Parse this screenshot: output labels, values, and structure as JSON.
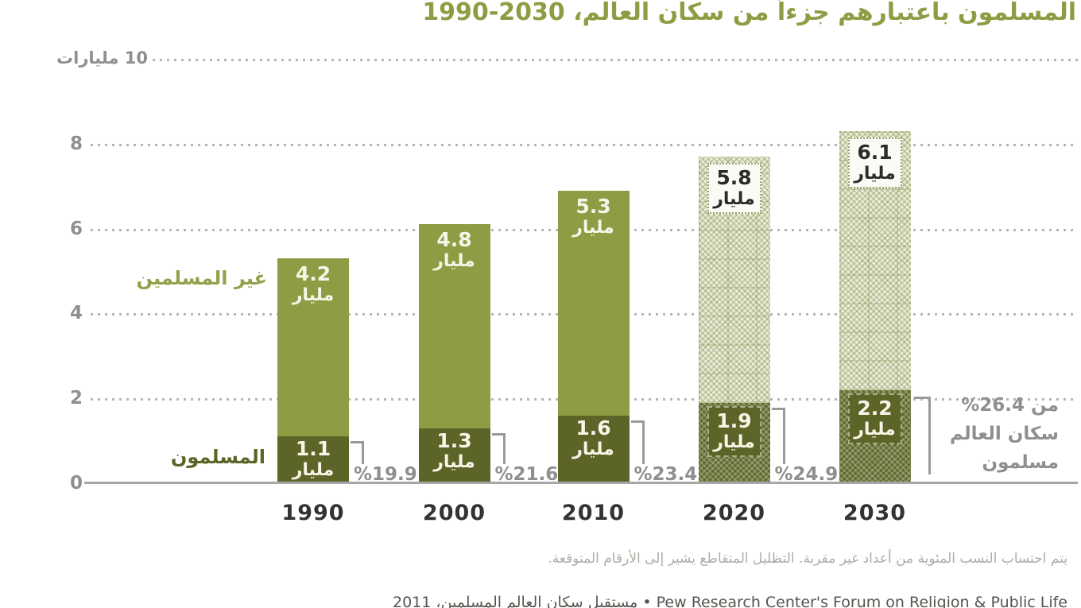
{
  "title": "المسلمون باعتبارهم جزءاً من سكان العالم، 2030-1990",
  "y_axis": {
    "top_label": "10 مليارات",
    "ticks": [
      "8",
      "6",
      "4",
      "2",
      "0"
    ]
  },
  "legend": {
    "non_muslims": "غير المسلمين",
    "muslims": "المسلمون"
  },
  "chart_data": {
    "type": "bar",
    "stacked": true,
    "title": "المسلمون باعتبارهم جزءاً من سكان العالم، 1990-2030",
    "categories": [
      "1990",
      "2000",
      "2010",
      "2020",
      "2030"
    ],
    "series": [
      {
        "name": "المسلمون",
        "values": [
          1.1,
          1.3,
          1.6,
          1.9,
          2.2
        ]
      },
      {
        "name": "غير المسلمين",
        "values": [
          4.2,
          4.8,
          5.3,
          5.8,
          6.1
        ]
      }
    ],
    "unit_word": "مليار",
    "muslim_share_percent": [
      19.9,
      21.6,
      23.4,
      24.9,
      26.4
    ],
    "share_labels_display": [
      "%19.9",
      "%21.6",
      "%23.4",
      "%24.9"
    ],
    "projected": [
      false,
      false,
      false,
      true,
      true
    ],
    "ylim": [
      0,
      10
    ],
    "grid": "dotted-horizontal",
    "legend_position": "beside-first-bar"
  },
  "annotation_2030": {
    "lines": [
      "%26.4 من",
      "سكان العالم",
      "مسلمون"
    ]
  },
  "footnote": "يتم احتساب النسب المئوية من أعداد غير مقربة. التظليل المتقاطع يشير إلى الأرقام المتوقعة.",
  "source": "Pew Research Center's Forum on Religion & Public Life • مستقبل سكان العالم المسلمين، 2011",
  "colors": {
    "bar_light": "#8e9c44",
    "bar_dark": "#5c6527",
    "hatch_light_bg": "#e9ebd8",
    "hatch_dark_bg": "#626b31",
    "title_green": "#8e9d44",
    "legend_light": "#93a14c",
    "legend_dark": "#5c6527",
    "tick_gray": "#8f8f8f",
    "year_dark": "#333333",
    "percent_gray": "#8f8f8f",
    "footnote_gray": "#adada6",
    "source_gray": "#55554f",
    "label_on_bar": "#f7f5e8",
    "label_on_box": "#2b2b2b",
    "box_bg": "#fbfbf5"
  }
}
